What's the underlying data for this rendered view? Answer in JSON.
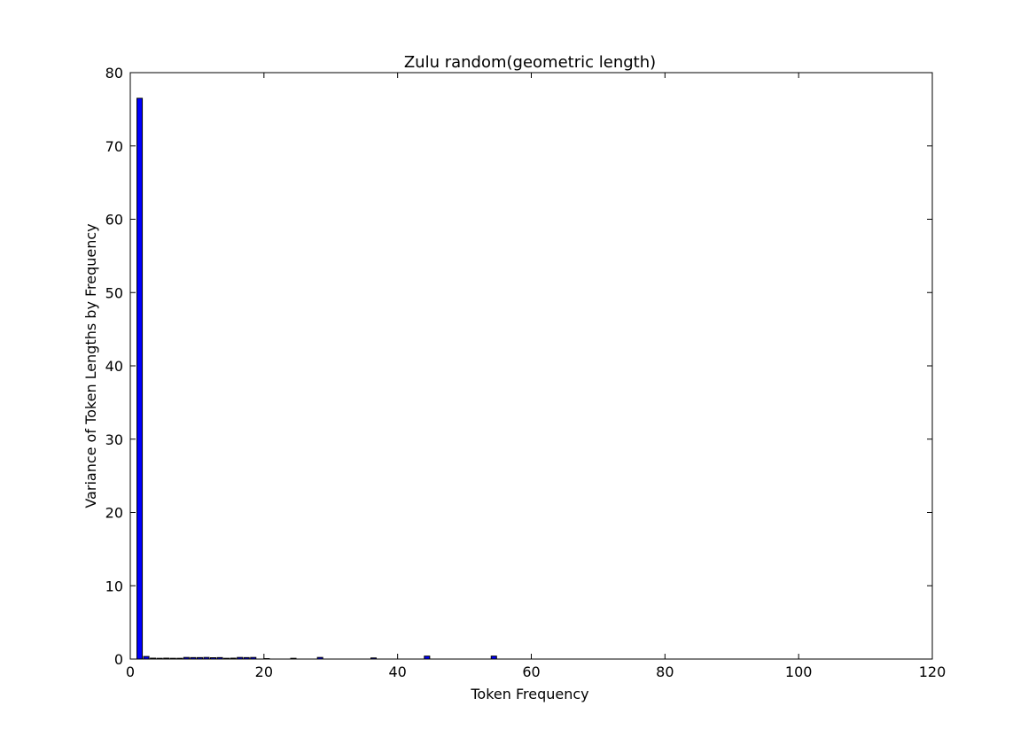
{
  "chart_data": {
    "type": "bar",
    "title": "Zulu random(geometric length)",
    "xlabel": "Token Frequency",
    "ylabel": "Variance of Token Lengths by Frequency",
    "xlim": [
      0,
      120
    ],
    "ylim": [
      0,
      80
    ],
    "xticks": [
      0,
      20,
      40,
      60,
      80,
      100,
      120
    ],
    "yticks": [
      0,
      10,
      20,
      30,
      40,
      50,
      60,
      70,
      80
    ],
    "grid": false,
    "bar_color": "#0000ff",
    "bar_width": 0.8,
    "series": [
      {
        "x": [
          1,
          2,
          3,
          4,
          5,
          6,
          7,
          8,
          9,
          10,
          11,
          12,
          13,
          14,
          15,
          16,
          17,
          18,
          20,
          24,
          28,
          36,
          44,
          54
        ],
        "values": [
          76.5,
          0.35,
          0.12,
          0.1,
          0.12,
          0.1,
          0.1,
          0.22,
          0.2,
          0.2,
          0.22,
          0.18,
          0.2,
          0.1,
          0.12,
          0.22,
          0.2,
          0.22,
          0.06,
          0.1,
          0.22,
          0.15,
          0.4,
          0.4
        ]
      }
    ]
  }
}
